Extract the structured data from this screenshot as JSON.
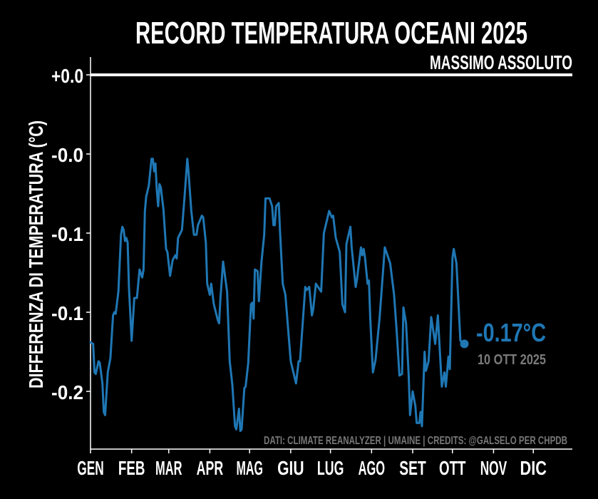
{
  "chart_data": {
    "type": "line",
    "title": "RECORD TEMPERATURA OCEANI 2025",
    "reference_line": {
      "label": "MASSIMO ASSOLUTO",
      "value": 0,
      "color": "#ffffff"
    },
    "ylabel": "DIFFERENZA DI TEMPERATURA (°C)",
    "xlabel": "",
    "xlim": [
      "2025-01-01",
      "2025-12-31"
    ],
    "ylim": [
      -0.25,
      0.01
    ],
    "grid": false,
    "x_ticks": [
      {
        "date": "2025-01-01",
        "label": "GEN"
      },
      {
        "date": "2025-02-01",
        "label": "FEB"
      },
      {
        "date": "2025-03-01",
        "label": "MAR"
      },
      {
        "date": "2025-04-01",
        "label": "APR"
      },
      {
        "date": "2025-05-01",
        "label": "MAG"
      },
      {
        "date": "2025-06-01",
        "label": "GIU"
      },
      {
        "date": "2025-07-01",
        "label": "LUG"
      },
      {
        "date": "2025-08-01",
        "label": "AGO"
      },
      {
        "date": "2025-09-01",
        "label": "SET"
      },
      {
        "date": "2025-10-01",
        "label": "OTT"
      },
      {
        "date": "2025-11-01",
        "label": "NOV"
      },
      {
        "date": "2025-12-01",
        "label": "DIC"
      }
    ],
    "y_ticks": [
      {
        "value": 0,
        "label": "+0.0"
      },
      {
        "value": -0.05,
        "label": "-0.0"
      },
      {
        "value": -0.1,
        "label": "-0.1"
      },
      {
        "value": -0.15,
        "label": "-0.1"
      },
      {
        "value": -0.2,
        "label": "-0.2"
      }
    ],
    "series": [
      {
        "color": "#1f77b4",
        "points": [
          [
            "2025-01-01",
            -0.169
          ],
          [
            "2025-01-03",
            -0.17
          ],
          [
            "2025-01-04",
            -0.188
          ],
          [
            "2025-01-05",
            -0.189
          ],
          [
            "2025-01-07",
            -0.181
          ],
          [
            "2025-01-08",
            -0.182
          ],
          [
            "2025-01-10",
            -0.195
          ],
          [
            "2025-01-11",
            -0.213
          ],
          [
            "2025-01-12",
            -0.215
          ],
          [
            "2025-01-14",
            -0.188
          ],
          [
            "2025-01-16",
            -0.179
          ],
          [
            "2025-01-18",
            -0.152
          ],
          [
            "2025-01-19",
            -0.15
          ],
          [
            "2025-01-20",
            -0.151
          ],
          [
            "2025-01-22",
            -0.137
          ],
          [
            "2025-01-24",
            -0.101
          ],
          [
            "2025-01-25",
            -0.096
          ],
          [
            "2025-01-26",
            -0.098
          ],
          [
            "2025-01-27",
            -0.105
          ],
          [
            "2025-01-28",
            -0.103
          ],
          [
            "2025-01-29",
            -0.106
          ],
          [
            "2025-01-30",
            -0.134
          ],
          [
            "2025-02-01",
            -0.168
          ],
          [
            "2025-02-03",
            -0.141
          ],
          [
            "2025-02-05",
            -0.141
          ],
          [
            "2025-02-07",
            -0.123
          ],
          [
            "2025-02-09",
            -0.128
          ],
          [
            "2025-02-10",
            -0.123
          ],
          [
            "2025-02-11",
            -0.086
          ],
          [
            "2025-02-12",
            -0.077
          ],
          [
            "2025-02-14",
            -0.07
          ],
          [
            "2025-02-16",
            -0.053
          ],
          [
            "2025-02-17",
            -0.053
          ],
          [
            "2025-02-18",
            -0.061
          ],
          [
            "2025-02-19",
            -0.056
          ],
          [
            "2025-02-20",
            -0.073
          ],
          [
            "2025-02-21",
            -0.083
          ],
          [
            "2025-02-22",
            -0.069
          ],
          [
            "2025-02-23",
            -0.071
          ],
          [
            "2025-02-25",
            -0.085
          ],
          [
            "2025-02-27",
            -0.11
          ],
          [
            "2025-02-28",
            -0.112
          ],
          [
            "2025-03-02",
            -0.127
          ],
          [
            "2025-03-04",
            -0.117
          ],
          [
            "2025-03-06",
            -0.114
          ],
          [
            "2025-03-07",
            -0.116
          ],
          [
            "2025-03-08",
            -0.103
          ],
          [
            "2025-03-11",
            -0.098
          ],
          [
            "2025-03-13",
            -0.076
          ],
          [
            "2025-03-15",
            -0.053
          ],
          [
            "2025-03-16",
            -0.062
          ],
          [
            "2025-03-18",
            -0.086
          ],
          [
            "2025-03-20",
            -0.101
          ],
          [
            "2025-03-22",
            -0.101
          ],
          [
            "2025-03-23",
            -0.095
          ],
          [
            "2025-03-26",
            -0.089
          ],
          [
            "2025-03-27",
            -0.09
          ],
          [
            "2025-03-29",
            -0.106
          ],
          [
            "2025-03-30",
            -0.132
          ],
          [
            "2025-04-01",
            -0.139
          ],
          [
            "2025-04-02",
            -0.132
          ],
          [
            "2025-04-04",
            -0.145
          ],
          [
            "2025-04-07",
            -0.155
          ],
          [
            "2025-04-08",
            -0.157
          ],
          [
            "2025-04-09",
            -0.141
          ],
          [
            "2025-04-11",
            -0.118
          ],
          [
            "2025-04-14",
            -0.137
          ],
          [
            "2025-04-16",
            -0.181
          ],
          [
            "2025-04-18",
            -0.196
          ],
          [
            "2025-04-20",
            -0.222
          ],
          [
            "2025-04-21",
            -0.224
          ],
          [
            "2025-04-23",
            -0.211
          ],
          [
            "2025-04-24",
            -0.225
          ],
          [
            "2025-04-25",
            -0.224
          ],
          [
            "2025-04-27",
            -0.198
          ],
          [
            "2025-04-28",
            -0.197
          ],
          [
            "2025-04-30",
            -0.182
          ],
          [
            "2025-05-02",
            -0.145
          ],
          [
            "2025-05-03",
            -0.144
          ],
          [
            "2025-05-04",
            -0.154
          ],
          [
            "2025-05-05",
            -0.123
          ],
          [
            "2025-05-07",
            -0.124
          ],
          [
            "2025-05-08",
            -0.143
          ],
          [
            "2025-05-10",
            -0.118
          ],
          [
            "2025-05-12",
            -0.101
          ],
          [
            "2025-05-13",
            -0.078
          ],
          [
            "2025-05-16",
            -0.078
          ],
          [
            "2025-05-18",
            -0.083
          ],
          [
            "2025-05-19",
            -0.095
          ],
          [
            "2025-05-20",
            -0.095
          ],
          [
            "2025-05-21",
            -0.083
          ],
          [
            "2025-05-23",
            -0.081
          ],
          [
            "2025-05-24",
            -0.1
          ],
          [
            "2025-05-26",
            -0.132
          ],
          [
            "2025-05-28",
            -0.139
          ],
          [
            "2025-06-01",
            -0.181
          ],
          [
            "2025-06-05",
            -0.195
          ],
          [
            "2025-06-07",
            -0.181
          ],
          [
            "2025-06-08",
            -0.181
          ],
          [
            "2025-06-12",
            -0.134
          ],
          [
            "2025-06-13",
            -0.136
          ],
          [
            "2025-06-15",
            -0.134
          ],
          [
            "2025-06-17",
            -0.152
          ],
          [
            "2025-06-18",
            -0.148
          ],
          [
            "2025-06-20",
            -0.132
          ],
          [
            "2025-06-24",
            -0.137
          ],
          [
            "2025-06-26",
            -0.1
          ],
          [
            "2025-06-30",
            -0.086
          ],
          [
            "2025-07-02",
            -0.09
          ],
          [
            "2025-07-03",
            -0.089
          ],
          [
            "2025-07-05",
            -0.103
          ],
          [
            "2025-07-08",
            -0.112
          ],
          [
            "2025-07-10",
            -0.145
          ],
          [
            "2025-07-12",
            -0.15
          ],
          [
            "2025-07-13",
            -0.107
          ],
          [
            "2025-07-16",
            -0.096
          ],
          [
            "2025-07-17",
            -0.109
          ],
          [
            "2025-07-20",
            -0.134
          ],
          [
            "2025-07-21",
            -0.129
          ],
          [
            "2025-07-24",
            -0.109
          ],
          [
            "2025-07-25",
            -0.114
          ],
          [
            "2025-07-26",
            -0.11
          ],
          [
            "2025-07-27",
            -0.115
          ],
          [
            "2025-07-29",
            -0.132
          ],
          [
            "2025-07-30",
            -0.13
          ],
          [
            "2025-07-31",
            -0.154
          ],
          [
            "2025-08-02",
            -0.188
          ],
          [
            "2025-08-04",
            -0.18
          ],
          [
            "2025-08-07",
            -0.154
          ],
          [
            "2025-08-11",
            -0.109
          ],
          [
            "2025-08-13",
            -0.114
          ],
          [
            "2025-08-15",
            -0.119
          ],
          [
            "2025-08-18",
            -0.139
          ],
          [
            "2025-08-20",
            -0.163
          ],
          [
            "2025-08-22",
            -0.19
          ],
          [
            "2025-08-24",
            -0.189
          ],
          [
            "2025-08-25",
            -0.147
          ],
          [
            "2025-08-27",
            -0.157
          ],
          [
            "2025-08-29",
            -0.19
          ],
          [
            "2025-08-30",
            -0.215
          ],
          [
            "2025-09-01",
            -0.2
          ],
          [
            "2025-09-03",
            -0.209
          ],
          [
            "2025-09-04",
            -0.22
          ],
          [
            "2025-09-06",
            -0.22
          ],
          [
            "2025-09-07",
            -0.213
          ],
          [
            "2025-09-08",
            -0.222
          ],
          [
            "2025-09-10",
            -0.175
          ],
          [
            "2025-09-11",
            -0.187
          ],
          [
            "2025-09-13",
            -0.181
          ],
          [
            "2025-09-15",
            -0.153
          ],
          [
            "2025-09-18",
            -0.17
          ],
          [
            "2025-09-20",
            -0.152
          ],
          [
            "2025-09-23",
            -0.197
          ],
          [
            "2025-09-25",
            -0.188
          ],
          [
            "2025-09-26",
            -0.197
          ],
          [
            "2025-09-28",
            -0.178
          ],
          [
            "2025-09-29",
            -0.186
          ],
          [
            "2025-10-01",
            -0.116
          ],
          [
            "2025-10-02",
            -0.11
          ],
          [
            "2025-10-04",
            -0.119
          ],
          [
            "2025-10-07",
            -0.168
          ],
          [
            "2025-10-10",
            -0.17
          ]
        ]
      }
    ],
    "annotation": {
      "value_label": "-0.17°C",
      "date_label": "10 OTT 2025",
      "color": "#1f77b4",
      "date_color": "#7a7a7a"
    },
    "credits": "DATI: CLIMATE REANALYZER | UMAINE | CREDITS: @GALSELO PER CHPDB"
  }
}
